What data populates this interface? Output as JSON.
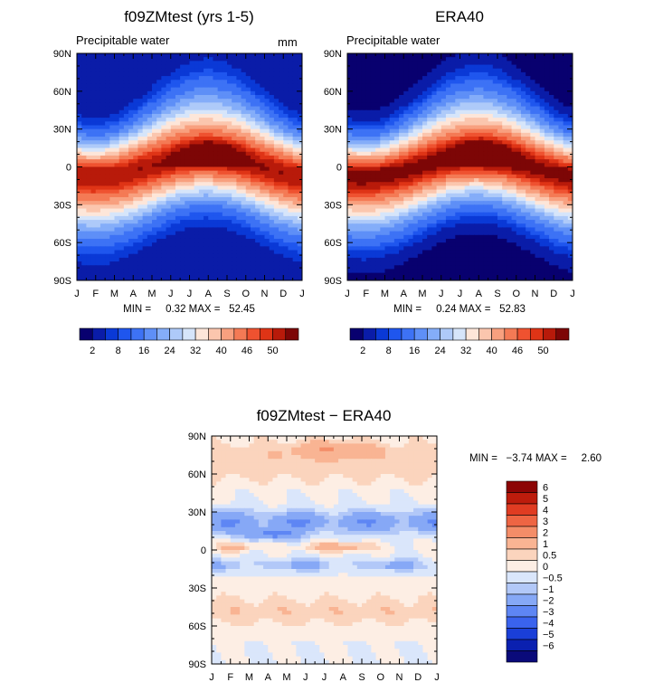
{
  "chart_data": [
    {
      "type": "heatmap",
      "id": "model",
      "title": "f09ZMtest (yrs 1-5)",
      "subtitle": "Precipitable water",
      "units": "mm",
      "x_tick_labels": [
        "J",
        "F",
        "M",
        "A",
        "M",
        "J",
        "J",
        "A",
        "S",
        "O",
        "N",
        "D",
        "J"
      ],
      "y_tick_labels": [
        "90N",
        "60N",
        "30N",
        "0",
        "30S",
        "60S",
        "90S"
      ],
      "xlim": [
        0,
        12
      ],
      "ylim": [
        -90,
        90
      ],
      "min_label": "MIN =",
      "min_value": "0.32",
      "max_label": "MAX =",
      "max_value": "52.45",
      "stats_text": "MIN =     0.32 MAX =   52.45",
      "field": {
        "equator_value": 50,
        "itcz_amplitude_deg": 8,
        "peak_month": 6.8,
        "pole_value": 2
      },
      "colorbar": {
        "levels": [
          2,
          4,
          6,
          8,
          12,
          16,
          20,
          24,
          28,
          32,
          36,
          40,
          44,
          46,
          48,
          50
        ],
        "labels": [
          "2",
          "8",
          "16",
          "24",
          "32",
          "40",
          "46",
          "50"
        ],
        "colors": [
          "#08006f",
          "#0a1ca8",
          "#0a39d6",
          "#1f56ee",
          "#3d72f5",
          "#5e8ff7",
          "#84adf9",
          "#aecaf9",
          "#d6e5fa",
          "#fde6d9",
          "#fbc6ae",
          "#f8a07f",
          "#f47a55",
          "#ef5230",
          "#df3416",
          "#b81a0a",
          "#7d0606"
        ]
      }
    },
    {
      "type": "heatmap",
      "id": "obs",
      "title": "ERA40",
      "subtitle": "Precipitable water",
      "x_tick_labels": [
        "J",
        "F",
        "M",
        "A",
        "M",
        "J",
        "J",
        "A",
        "S",
        "O",
        "N",
        "D",
        "J"
      ],
      "y_tick_labels": [
        "90N",
        "60N",
        "30N",
        "0",
        "30S",
        "60S",
        "90S"
      ],
      "xlim": [
        0,
        12
      ],
      "ylim": [
        -90,
        90
      ],
      "min_label": "MIN =",
      "min_value": "0.24",
      "max_label": "MAX =",
      "max_value": "52.83",
      "stats_text": "MIN =     0.24 MAX =   52.83",
      "field": {
        "equator_value": 51,
        "itcz_amplitude_deg": 8,
        "peak_month": 6.8,
        "pole_value": 1
      },
      "colorbar": {
        "levels": [
          2,
          4,
          6,
          8,
          12,
          16,
          20,
          24,
          28,
          32,
          36,
          40,
          44,
          46,
          48,
          50
        ],
        "labels": [
          "2",
          "8",
          "16",
          "24",
          "32",
          "40",
          "46",
          "50"
        ],
        "colors": [
          "#08006f",
          "#0a1ca8",
          "#0a39d6",
          "#1f56ee",
          "#3d72f5",
          "#5e8ff7",
          "#84adf9",
          "#aecaf9",
          "#d6e5fa",
          "#fde6d9",
          "#fbc6ae",
          "#f8a07f",
          "#f47a55",
          "#ef5230",
          "#df3416",
          "#b81a0a",
          "#7d0606"
        ]
      }
    },
    {
      "type": "heatmap",
      "id": "diff",
      "title": "f09ZMtest − ERA40",
      "x_tick_labels": [
        "J",
        "F",
        "M",
        "A",
        "M",
        "J",
        "J",
        "A",
        "S",
        "O",
        "N",
        "D",
        "J"
      ],
      "y_tick_labels": [
        "90N",
        "60N",
        "30N",
        "0",
        "30S",
        "60S",
        "90S"
      ],
      "xlim": [
        0,
        12
      ],
      "ylim": [
        -90,
        90
      ],
      "min_label": "MIN =",
      "min_value": "−3.74",
      "max_label": "MAX =",
      "max_value": "2.60",
      "stats_text": "MIN =   −3.74 MAX =     2.60",
      "colorbar": {
        "levels": [
          -6,
          -5,
          -4,
          -3,
          -2,
          -1,
          -0.5,
          0,
          0.5,
          1,
          2,
          3,
          4,
          5,
          6
        ],
        "labels": [
          "6",
          "5",
          "4",
          "3",
          "2",
          "1",
          "0.5",
          "0",
          "−0.5",
          "−1",
          "−2",
          "−3",
          "−4",
          "−5",
          "−6"
        ],
        "colors": [
          "#0a0a7a",
          "#0a20b0",
          "#1a3fd8",
          "#3a63ee",
          "#5e86f4",
          "#86a8f6",
          "#b2c8f8",
          "#dae6fb",
          "#fdeee4",
          "#fbd4bd",
          "#f9b493",
          "#f48d68",
          "#ee6543",
          "#e03c22",
          "#bd1c0c",
          "#8c0505"
        ]
      }
    }
  ]
}
